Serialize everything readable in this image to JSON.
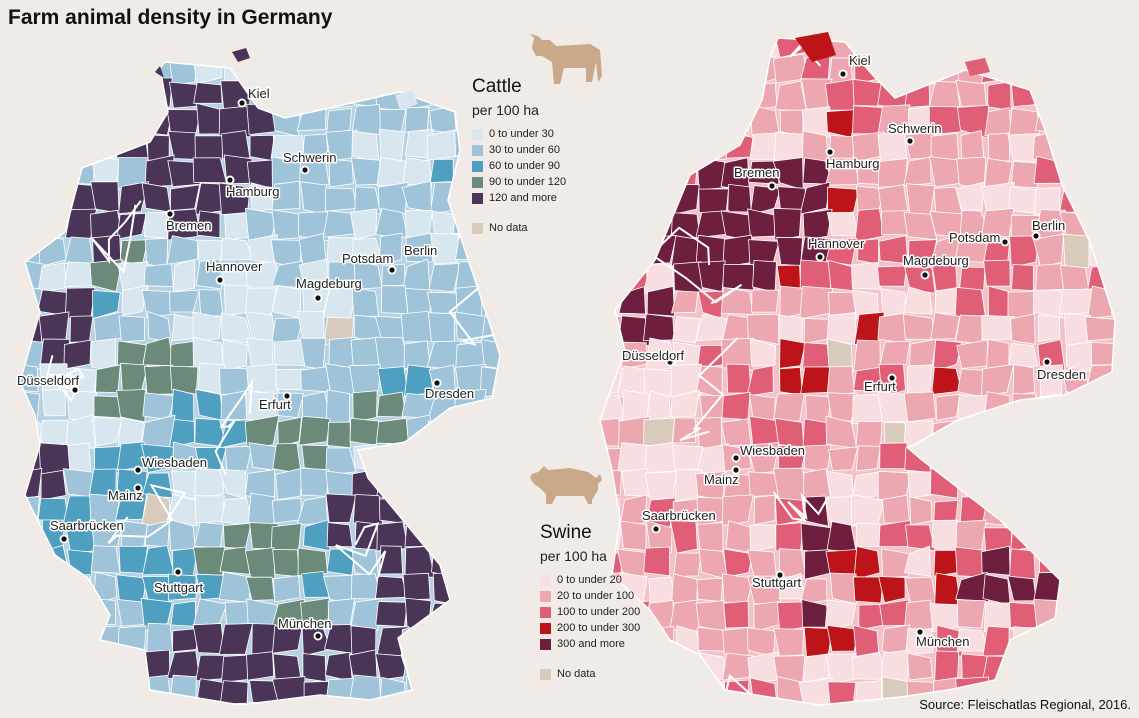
{
  "title": "Farm animal density in Germany",
  "source": "Source: Fleischatlas Regional, 2016.",
  "legend_cattle": {
    "title": "Cattle",
    "subtitle": "per 100 ha",
    "classes": [
      {
        "label": "0 to under 30",
        "color": "#d8e6ef"
      },
      {
        "label": "30 to under 60",
        "color": "#9fc4d9"
      },
      {
        "label": "60 to under 90",
        "color": "#4f9fc1"
      },
      {
        "label": "90 to under 120",
        "color": "#6b8a79"
      },
      {
        "label": "120 and more",
        "color": "#4a3558"
      }
    ],
    "no_data": {
      "label": "No data",
      "color": "#d9cbbb"
    }
  },
  "legend_swine": {
    "title": "Swine",
    "subtitle": "per 100 ha",
    "classes": [
      {
        "label": "0 to under 20",
        "color": "#f8dde1"
      },
      {
        "label": "20 to under 100",
        "color": "#eda7b0"
      },
      {
        "label": "100 to under 200",
        "color": "#e05f77"
      },
      {
        "label": "200 to under 300",
        "color": "#bc1418"
      },
      {
        "label": "300 and more",
        "color": "#6e1e3e"
      }
    ],
    "no_data": {
      "label": "No data",
      "color": "#d9cbbb"
    }
  },
  "cattle_cities": [
    "Kiel",
    "Hamburg",
    "Schwerin",
    "Bremen",
    "Hannover",
    "Berlin",
    "Potsdam",
    "Magdeburg",
    "Düsseldorf",
    "Dresden",
    "Erfurt",
    "Wiesbaden",
    "Mainz",
    "Saarbrücken",
    "Stuttgart",
    "München"
  ],
  "swine_cities": [
    "Kiel",
    "Schwerin",
    "Hamburg",
    "Bremen",
    "Hannover",
    "Potsdam",
    "Berlin",
    "Magdeburg",
    "Düsseldorf",
    "Erfurt",
    "Dresden",
    "Wiesbaden",
    "Mainz",
    "Saarbrücken",
    "Stuttgart",
    "München"
  ],
  "icons": {
    "cattle": "cow-icon",
    "swine": "pig-icon"
  }
}
